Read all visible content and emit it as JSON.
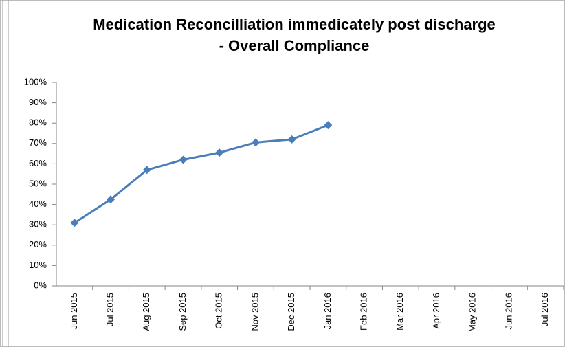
{
  "chart_data": {
    "type": "line",
    "title": [
      "Medication Reconcilliation immedicately post discharge",
      "- Overall Compliance"
    ],
    "categories": [
      "Jun 2015",
      "Jul 2015",
      "Aug 2015",
      "Sep 2015",
      "Oct 2015",
      "Nov 2015",
      "Dec 2015",
      "Jan 2016",
      "Feb 2016",
      "Mar 2016",
      "Apr 2016",
      "May 2016",
      "Jun 2016",
      "Jul 2016"
    ],
    "values": [
      31,
      42.5,
      57,
      62,
      65.5,
      70.5,
      72,
      79,
      null,
      null,
      null,
      null,
      null,
      null
    ],
    "color": "#4a7ebb",
    "ylim": [
      0,
      100
    ],
    "yticks": [
      {
        "value": 0,
        "label": "0%"
      },
      {
        "value": 10,
        "label": "10%"
      },
      {
        "value": 20,
        "label": "20%"
      },
      {
        "value": 30,
        "label": "30%"
      },
      {
        "value": 40,
        "label": "40%"
      },
      {
        "value": 50,
        "label": "50%"
      },
      {
        "value": 60,
        "label": "60%"
      },
      {
        "value": 70,
        "label": "70%"
      },
      {
        "value": 80,
        "label": "80%"
      },
      {
        "value": 90,
        "label": "90%"
      },
      {
        "value": 100,
        "label": "100%"
      }
    ],
    "grid": false
  }
}
